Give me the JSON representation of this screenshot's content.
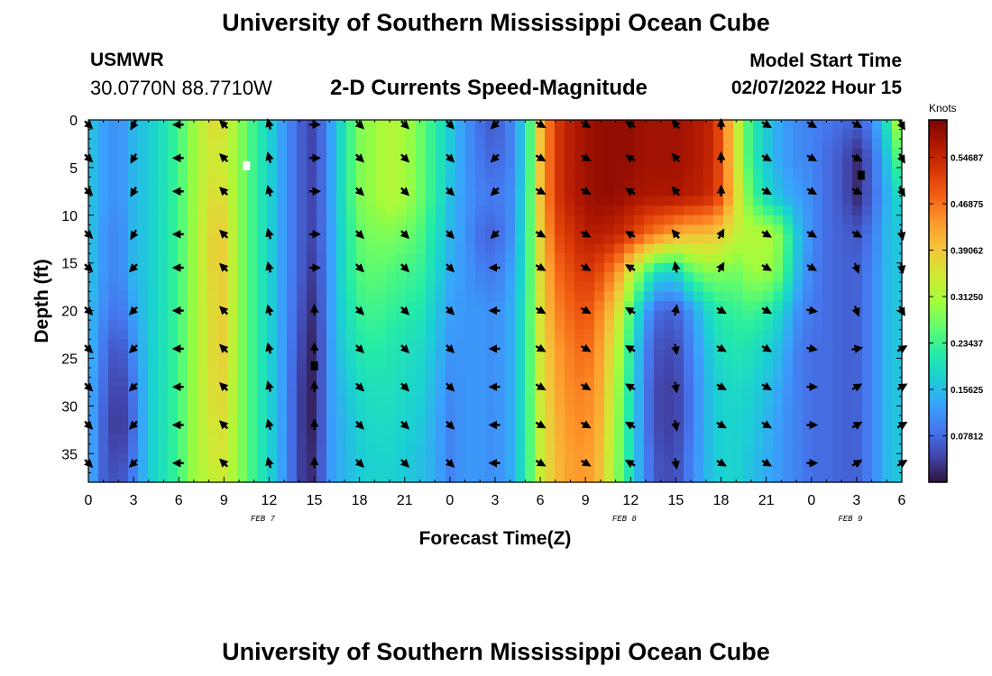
{
  "page": {
    "title_top": "University of Southern Mississippi Ocean Cube",
    "title_bottom": "University of Southern Mississippi Ocean Cube",
    "station_name": "USMWR",
    "station_coords": "30.0770N  88.7710W",
    "model_start_label": "Model Start Time",
    "model_start_value": "02/07/2022 Hour 15"
  },
  "chart_data": {
    "type": "heatmap",
    "title": "2-D Currents Speed-Magnitude",
    "xlabel": "Forecast Time(Z)",
    "ylabel": "Depth (ft)",
    "colorbar_units": "Knots",
    "x_range_hours": [
      0,
      54
    ],
    "y_range_ft": [
      0,
      38
    ],
    "x_ticks": [
      {
        "hour": 0,
        "label": "0"
      },
      {
        "hour": 3,
        "label": "3"
      },
      {
        "hour": 6,
        "label": "6"
      },
      {
        "hour": 9,
        "label": "9"
      },
      {
        "hour": 12,
        "label": "12"
      },
      {
        "hour": 15,
        "label": "15"
      },
      {
        "hour": 18,
        "label": "18"
      },
      {
        "hour": 21,
        "label": "21"
      },
      {
        "hour": 24,
        "label": "0"
      },
      {
        "hour": 27,
        "label": "3"
      },
      {
        "hour": 30,
        "label": "6"
      },
      {
        "hour": 33,
        "label": "9"
      },
      {
        "hour": 36,
        "label": "12"
      },
      {
        "hour": 39,
        "label": "15"
      },
      {
        "hour": 42,
        "label": "18"
      },
      {
        "hour": 45,
        "label": "21"
      },
      {
        "hour": 48,
        "label": "0"
      },
      {
        "hour": 51,
        "label": "3"
      },
      {
        "hour": 54,
        "label": "6"
      }
    ],
    "date_labels": [
      {
        "hour": 12,
        "label": "FEB 7"
      },
      {
        "hour": 36,
        "label": "FEB 8"
      },
      {
        "hour": 51,
        "label": "FEB 9"
      }
    ],
    "y_ticks": [
      0,
      5,
      10,
      15,
      20,
      25,
      30,
      35
    ],
    "colorbar": {
      "range": [
        0.0,
        0.61
      ],
      "tick_values": [
        0.078125,
        0.15625,
        0.234375,
        0.3125,
        0.390625,
        0.46875,
        0.546875
      ],
      "tick_labels": [
        "0.07812",
        "0.15625",
        "0.23437",
        "0.31250",
        "0.39062",
        "0.46875",
        "0.54687"
      ],
      "colors": [
        "#30123b",
        "#4145ab",
        "#4675ed",
        "#39a2fc",
        "#1bcfd4",
        "#24eca6",
        "#61fc6c",
        "#a4fc3b",
        "#d1e834",
        "#f3c63a",
        "#fe9b2d",
        "#f36315",
        "#d93806",
        "#b11901",
        "#7a0403"
      ]
    },
    "speed_field": {
      "depths_ft": [
        0,
        4,
        8,
        12,
        16,
        20,
        24,
        28,
        32,
        36,
        38
      ],
      "hours": [
        0,
        1,
        2,
        3,
        4,
        5,
        6,
        7,
        8,
        9,
        10,
        11,
        12,
        13,
        14,
        15,
        16,
        17,
        18,
        19,
        20,
        21,
        22,
        23,
        24,
        25,
        26,
        27,
        28,
        29,
        30,
        31,
        32,
        33,
        34,
        35,
        36,
        37,
        38,
        39,
        40,
        41,
        42,
        43,
        44,
        45,
        46,
        47,
        48,
        49,
        50,
        51,
        52,
        53,
        54
      ],
      "knots_by_hour": [
        [
          0.17,
          0.17,
          0.17,
          0.17,
          0.17,
          0.16,
          0.16,
          0.15,
          0.15,
          0.15,
          0.15
        ],
        [
          0.13,
          0.13,
          0.13,
          0.12,
          0.12,
          0.11,
          0.09,
          0.08,
          0.07,
          0.07,
          0.07
        ],
        [
          0.11,
          0.11,
          0.11,
          0.1,
          0.1,
          0.08,
          0.05,
          0.03,
          0.02,
          0.04,
          0.05
        ],
        [
          0.15,
          0.15,
          0.15,
          0.15,
          0.15,
          0.13,
          0.11,
          0.09,
          0.08,
          0.09,
          0.1
        ],
        [
          0.17,
          0.17,
          0.17,
          0.17,
          0.17,
          0.17,
          0.17,
          0.17,
          0.17,
          0.17,
          0.17
        ],
        [
          0.2,
          0.2,
          0.2,
          0.2,
          0.2,
          0.2,
          0.2,
          0.2,
          0.2,
          0.2,
          0.2
        ],
        [
          0.24,
          0.24,
          0.24,
          0.24,
          0.24,
          0.24,
          0.24,
          0.24,
          0.24,
          0.24,
          0.24
        ],
        [
          0.3,
          0.3,
          0.3,
          0.3,
          0.3,
          0.3,
          0.3,
          0.3,
          0.3,
          0.3,
          0.3
        ],
        [
          0.36,
          0.35,
          0.36,
          0.37,
          0.37,
          0.36,
          0.36,
          0.36,
          0.35,
          0.34,
          0.33
        ],
        [
          0.36,
          0.34,
          0.36,
          0.38,
          0.38,
          0.38,
          0.38,
          0.37,
          0.36,
          0.35,
          0.34
        ],
        [
          0.29,
          0.29,
          0.29,
          0.29,
          0.29,
          0.29,
          0.29,
          0.29,
          0.29,
          0.29,
          0.29
        ],
        [
          0.23,
          0.23,
          0.23,
          0.23,
          0.23,
          0.23,
          0.23,
          0.23,
          0.23,
          0.23,
          0.23
        ],
        [
          0.18,
          0.18,
          0.18,
          0.18,
          0.18,
          0.18,
          0.18,
          0.18,
          0.18,
          0.18,
          0.18
        ],
        [
          0.12,
          0.12,
          0.12,
          0.12,
          0.12,
          0.12,
          0.12,
          0.12,
          0.12,
          0.12,
          0.12
        ],
        [
          0.07,
          0.07,
          0.07,
          0.07,
          0.07,
          0.06,
          0.05,
          0.04,
          0.04,
          0.04,
          0.04
        ],
        [
          0.04,
          0.04,
          0.04,
          0.04,
          0.03,
          0.02,
          0.01,
          0.01,
          0.01,
          0.02,
          0.02
        ],
        [
          0.12,
          0.12,
          0.12,
          0.12,
          0.12,
          0.12,
          0.12,
          0.12,
          0.12,
          0.12,
          0.12
        ],
        [
          0.21,
          0.21,
          0.21,
          0.2,
          0.2,
          0.19,
          0.18,
          0.16,
          0.15,
          0.15,
          0.15
        ],
        [
          0.28,
          0.28,
          0.28,
          0.26,
          0.25,
          0.23,
          0.21,
          0.19,
          0.18,
          0.17,
          0.17
        ],
        [
          0.3,
          0.3,
          0.3,
          0.28,
          0.26,
          0.24,
          0.22,
          0.2,
          0.19,
          0.18,
          0.18
        ],
        [
          0.32,
          0.32,
          0.32,
          0.28,
          0.25,
          0.23,
          0.21,
          0.2,
          0.19,
          0.18,
          0.18
        ],
        [
          0.31,
          0.31,
          0.31,
          0.27,
          0.24,
          0.22,
          0.2,
          0.19,
          0.18,
          0.17,
          0.17
        ],
        [
          0.27,
          0.27,
          0.27,
          0.25,
          0.23,
          0.21,
          0.19,
          0.18,
          0.17,
          0.16,
          0.16
        ],
        [
          0.22,
          0.22,
          0.22,
          0.2,
          0.19,
          0.17,
          0.16,
          0.15,
          0.14,
          0.14,
          0.14
        ],
        [
          0.17,
          0.17,
          0.16,
          0.15,
          0.14,
          0.13,
          0.12,
          0.11,
          0.1,
          0.1,
          0.1
        ],
        [
          0.12,
          0.12,
          0.12,
          0.12,
          0.12,
          0.12,
          0.12,
          0.12,
          0.12,
          0.12,
          0.12
        ],
        [
          0.08,
          0.09,
          0.1,
          0.08,
          0.1,
          0.12,
          0.12,
          0.12,
          0.12,
          0.12,
          0.12
        ],
        [
          0.06,
          0.07,
          0.09,
          0.07,
          0.09,
          0.11,
          0.11,
          0.11,
          0.11,
          0.11,
          0.11
        ],
        [
          0.1,
          0.1,
          0.11,
          0.11,
          0.13,
          0.14,
          0.14,
          0.14,
          0.14,
          0.14,
          0.14
        ],
        [
          0.18,
          0.18,
          0.19,
          0.2,
          0.2,
          0.21,
          0.21,
          0.21,
          0.21,
          0.21,
          0.21
        ],
        [
          0.4,
          0.4,
          0.4,
          0.38,
          0.37,
          0.36,
          0.35,
          0.35,
          0.34,
          0.34,
          0.34
        ],
        [
          0.52,
          0.52,
          0.52,
          0.5,
          0.47,
          0.45,
          0.43,
          0.42,
          0.41,
          0.4,
          0.4
        ],
        [
          0.56,
          0.56,
          0.56,
          0.53,
          0.5,
          0.48,
          0.46,
          0.45,
          0.44,
          0.43,
          0.43
        ],
        [
          0.58,
          0.58,
          0.58,
          0.56,
          0.53,
          0.5,
          0.48,
          0.46,
          0.45,
          0.44,
          0.44
        ],
        [
          0.59,
          0.59,
          0.59,
          0.56,
          0.5,
          0.45,
          0.43,
          0.42,
          0.41,
          0.4,
          0.4
        ],
        [
          0.59,
          0.59,
          0.59,
          0.55,
          0.45,
          0.38,
          0.34,
          0.32,
          0.31,
          0.3,
          0.3
        ],
        [
          0.59,
          0.59,
          0.58,
          0.52,
          0.35,
          0.25,
          0.22,
          0.21,
          0.2,
          0.2,
          0.2
        ],
        [
          0.58,
          0.58,
          0.57,
          0.48,
          0.25,
          0.13,
          0.1,
          0.09,
          0.09,
          0.1,
          0.1
        ],
        [
          0.58,
          0.58,
          0.57,
          0.45,
          0.18,
          0.07,
          0.05,
          0.04,
          0.04,
          0.05,
          0.05
        ],
        [
          0.58,
          0.58,
          0.57,
          0.42,
          0.18,
          0.07,
          0.05,
          0.04,
          0.04,
          0.05,
          0.05
        ],
        [
          0.57,
          0.57,
          0.56,
          0.4,
          0.25,
          0.12,
          0.1,
          0.09,
          0.09,
          0.1,
          0.1
        ],
        [
          0.56,
          0.56,
          0.55,
          0.4,
          0.28,
          0.18,
          0.16,
          0.15,
          0.15,
          0.15,
          0.15
        ],
        [
          0.5,
          0.5,
          0.5,
          0.38,
          0.28,
          0.22,
          0.2,
          0.18,
          0.18,
          0.18,
          0.18
        ],
        [
          0.35,
          0.35,
          0.37,
          0.33,
          0.27,
          0.23,
          0.21,
          0.19,
          0.18,
          0.18,
          0.18
        ],
        [
          0.22,
          0.22,
          0.25,
          0.32,
          0.3,
          0.24,
          0.2,
          0.18,
          0.17,
          0.16,
          0.16
        ],
        [
          0.17,
          0.17,
          0.19,
          0.32,
          0.3,
          0.22,
          0.18,
          0.16,
          0.15,
          0.14,
          0.14
        ],
        [
          0.13,
          0.13,
          0.15,
          0.28,
          0.26,
          0.18,
          0.15,
          0.13,
          0.12,
          0.12,
          0.12
        ],
        [
          0.11,
          0.11,
          0.13,
          0.17,
          0.16,
          0.12,
          0.1,
          0.1,
          0.1,
          0.1,
          0.1
        ],
        [
          0.1,
          0.1,
          0.11,
          0.11,
          0.1,
          0.09,
          0.08,
          0.08,
          0.08,
          0.08,
          0.08
        ],
        [
          0.09,
          0.08,
          0.08,
          0.08,
          0.08,
          0.08,
          0.08,
          0.08,
          0.08,
          0.08,
          0.08
        ],
        [
          0.08,
          0.06,
          0.06,
          0.07,
          0.07,
          0.07,
          0.07,
          0.07,
          0.07,
          0.07,
          0.07
        ],
        [
          0.07,
          0.02,
          0.02,
          0.06,
          0.07,
          0.07,
          0.07,
          0.07,
          0.07,
          0.07,
          0.07
        ],
        [
          0.1,
          0.07,
          0.07,
          0.09,
          0.1,
          0.1,
          0.1,
          0.1,
          0.1,
          0.1,
          0.1
        ],
        [
          0.2,
          0.16,
          0.14,
          0.15,
          0.15,
          0.15,
          0.15,
          0.15,
          0.15,
          0.15,
          0.15
        ],
        [
          0.35,
          0.28,
          0.2,
          0.17,
          0.17,
          0.17,
          0.17,
          0.17,
          0.17,
          0.17,
          0.17
        ]
      ]
    },
    "vectors": {
      "depths_ft": [
        0.5,
        4,
        7.5,
        12,
        15.5,
        20,
        24,
        28,
        32,
        36
      ],
      "hours": [
        0,
        3,
        6,
        9,
        12,
        15,
        18,
        21,
        24,
        27,
        30,
        33,
        36,
        39,
        42,
        45,
        48,
        51,
        54
      ],
      "direction_deg": [
        [
          135,
          135,
          135,
          135,
          135,
          135,
          135,
          135,
          135,
          135
        ],
        [
          210,
          210,
          210,
          210,
          225,
          225,
          225,
          225,
          225,
          225
        ],
        [
          270,
          270,
          270,
          270,
          270,
          270,
          270,
          270,
          270,
          270
        ],
        [
          315,
          315,
          315,
          315,
          315,
          315,
          315,
          315,
          315,
          315
        ],
        [
          345,
          345,
          345,
          345,
          345,
          345,
          345,
          345,
          345,
          345
        ],
        [
          90,
          90,
          90,
          90,
          90,
          0,
          0,
          0,
          0,
          0
        ],
        [
          135,
          135,
          135,
          135,
          135,
          135,
          135,
          135,
          135,
          135
        ],
        [
          135,
          135,
          135,
          135,
          135,
          135,
          135,
          135,
          135,
          135
        ],
        [
          135,
          135,
          135,
          135,
          135,
          135,
          135,
          135,
          135,
          135
        ],
        [
          225,
          225,
          225,
          225,
          270,
          270,
          270,
          270,
          270,
          270
        ],
        [
          120,
          120,
          120,
          120,
          120,
          120,
          120,
          120,
          120,
          120
        ],
        [
          120,
          120,
          120,
          120,
          120,
          120,
          120,
          120,
          120,
          120
        ],
        [
          300,
          300,
          300,
          300,
          300,
          300,
          300,
          300,
          300,
          300
        ],
        [
          320,
          320,
          320,
          320,
          350,
          10,
          170,
          170,
          170,
          170
        ],
        [
          0,
          0,
          0,
          30,
          30,
          120,
          120,
          120,
          120,
          120
        ],
        [
          120,
          120,
          120,
          120,
          120,
          120,
          120,
          120,
          120,
          120
        ],
        [
          120,
          120,
          120,
          120,
          120,
          100,
          100,
          90,
          90,
          90
        ],
        [
          120,
          120,
          120,
          120,
          160,
          160,
          80,
          60,
          60,
          60
        ],
        [
          150,
          150,
          150,
          170,
          170,
          150,
          60,
          60,
          60,
          60
        ]
      ]
    },
    "markers": [
      {
        "hour": 10.5,
        "depth": 4.8,
        "color": "#ffffff"
      },
      {
        "hour": 51.3,
        "depth": 5.8,
        "color": "#000000"
      },
      {
        "hour": 15.0,
        "depth": 25.8,
        "color": "#000000"
      }
    ]
  }
}
